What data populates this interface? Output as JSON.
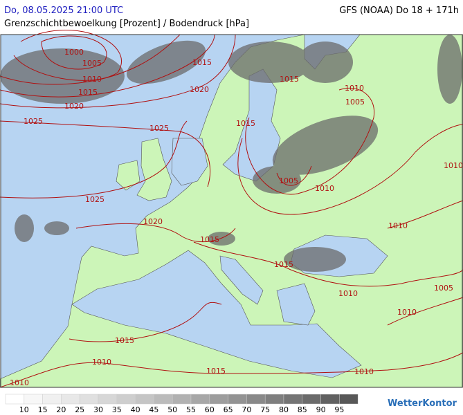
{
  "header": {
    "datetime": "Do, 08.05.2025 21:00 UTC",
    "model": "GFS (NOAA) Do 18 + 171h",
    "subtitle": "Grenzschichtbewoelkung [Prozent] / Bodendruck [hPa]"
  },
  "isobar_labels": [
    1000,
    1005,
    1010,
    1015,
    1020,
    1025,
    1015,
    1020,
    1025,
    1015,
    1010,
    1005,
    1015,
    1005,
    1010,
    1010,
    1025,
    1020,
    1015,
    1010,
    1015,
    1005,
    1010,
    1010,
    1015,
    1010,
    1015,
    1010,
    1010
  ],
  "legend": {
    "levels": [
      10,
      15,
      20,
      25,
      30,
      35,
      40,
      45,
      50,
      55,
      60,
      65,
      70,
      75,
      80,
      85,
      90,
      95
    ],
    "colors": [
      "#ffffff",
      "#f7f7f7",
      "#f0f0f0",
      "#e8e8e8",
      "#e0e0e0",
      "#d7d7d7",
      "#cecece",
      "#c5c5c5",
      "#bbbbbb",
      "#b1b1b1",
      "#a7a7a7",
      "#9d9d9d",
      "#939393",
      "#898989",
      "#7f7f7f",
      "#757575",
      "#6b6b6b",
      "#616161",
      "#585858"
    ]
  },
  "logo": "WetterKontor"
}
